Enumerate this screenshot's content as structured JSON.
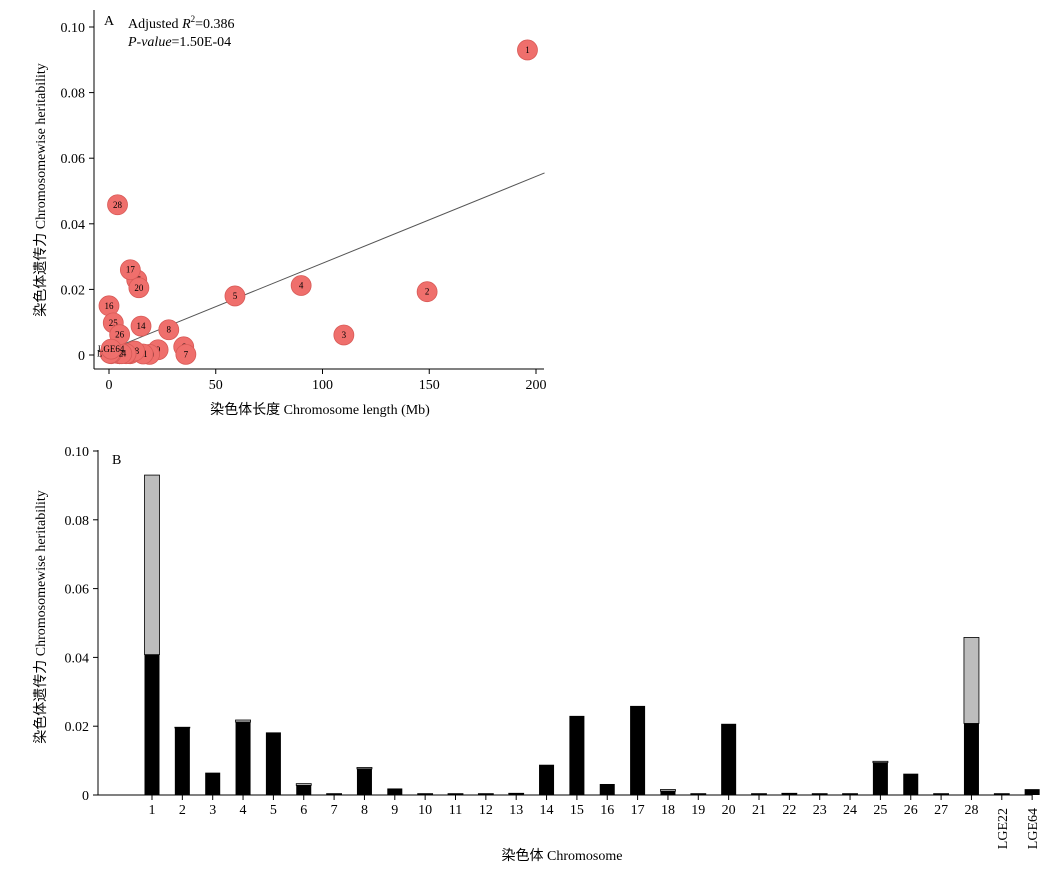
{
  "chart_data": [
    {
      "panel_label": "A",
      "type": "scatter",
      "xlabel": "染色体长度 Chromosome length (Mb)",
      "ylabel": "染色体遗传力 Chromosomewise heritability",
      "xlim": [
        -4,
        204
      ],
      "ylim": [
        -0.003,
        0.1
      ],
      "x_ticks": [
        0,
        50,
        100,
        150,
        200
      ],
      "x_tick_labels": [
        "0",
        "50",
        "100",
        "150",
        "200"
      ],
      "y_ticks": [
        0,
        0.02,
        0.04,
        0.06,
        0.08,
        0.1
      ],
      "y_tick_labels": [
        "0",
        "0.02",
        "0.04",
        "0.06",
        "0.08",
        "0.10"
      ],
      "annotation_line1_prefix": "Adjusted ",
      "annotation_line1_symbol": "R",
      "annotation_line1_sup": "2",
      "annotation_line1_suffix": "=0.386",
      "annotation_line2_italic": "P-value",
      "annotation_line2_suffix": "=1.50E-04",
      "regression": {
        "x1": 0,
        "y1": 0.0015,
        "x2": 204,
        "y2": 0.0555
      },
      "marker_color": "#ef6f6c",
      "grid": false,
      "points": [
        {
          "label": "1",
          "x": 196,
          "y": 0.093
        },
        {
          "label": "2",
          "x": 149,
          "y": 0.0193
        },
        {
          "label": "3",
          "x": 110,
          "y": 0.0061
        },
        {
          "label": "4",
          "x": 90,
          "y": 0.0212
        },
        {
          "label": "5",
          "x": 59,
          "y": 0.018
        },
        {
          "label": "6",
          "x": 35,
          "y": 0.0025
        },
        {
          "label": "7",
          "x": 36,
          "y": 0.0002
        },
        {
          "label": "8",
          "x": 28,
          "y": 0.0077
        },
        {
          "label": "9",
          "x": 23,
          "y": 0.0016
        },
        {
          "label": "10",
          "x": 19,
          "y": 0.0002
        },
        {
          "label": "11",
          "x": 16,
          "y": 0.0003
        },
        {
          "label": "12",
          "x": 10,
          "y": 0.0004
        },
        {
          "label": "13",
          "x": 9,
          "y": 0.0005
        },
        {
          "label": "14",
          "x": 15,
          "y": 0.0088
        },
        {
          "label": "15",
          "x": 13,
          "y": 0.0229
        },
        {
          "label": "16",
          "x": 0,
          "y": 0.015
        },
        {
          "label": "17",
          "x": 10,
          "y": 0.026
        },
        {
          "label": "18",
          "x": 12,
          "y": 0.0012
        },
        {
          "label": "19",
          "x": 8,
          "y": 0.0004
        },
        {
          "label": "20",
          "x": 14,
          "y": 0.0205
        },
        {
          "label": "21",
          "x": 5,
          "y": 0.0004
        },
        {
          "label": "22",
          "x": 4,
          "y": 0.0005
        },
        {
          "label": "23",
          "x": 5,
          "y": 0.0004
        },
        {
          "label": "24",
          "x": 6,
          "y": 0.0004
        },
        {
          "label": "25",
          "x": 2,
          "y": 0.0098
        },
        {
          "label": "26",
          "x": 5,
          "y": 0.0062
        },
        {
          "label": "27",
          "x": 1,
          "y": 0.0004
        },
        {
          "label": "28",
          "x": 4,
          "y": 0.0458
        },
        {
          "label": "LGE22",
          "x": 0.5,
          "y": 0.0005
        },
        {
          "label": "LGE64",
          "x": 1,
          "y": 0.0018
        }
      ]
    },
    {
      "panel_label": "B",
      "type": "bar",
      "stacked": true,
      "xlabel": "染色体 Chromosome",
      "ylabel": "染色体遗传力 Chromosomewise heritability",
      "ylim": [
        0,
        0.1
      ],
      "y_ticks": [
        0,
        0.02,
        0.04,
        0.06,
        0.08,
        0.1
      ],
      "y_tick_labels": [
        "0",
        "0.02",
        "0.04",
        "0.06",
        "0.08",
        "0.10"
      ],
      "grid": false,
      "categories": [
        "1",
        "2",
        "3",
        "4",
        "5",
        "6",
        "7",
        "8",
        "9",
        "10",
        "11",
        "12",
        "13",
        "14",
        "15",
        "16",
        "17",
        "18",
        "19",
        "20",
        "21",
        "22",
        "23",
        "24",
        "25",
        "26",
        "27",
        "28",
        "LGE22",
        "LGE64"
      ],
      "series": [
        {
          "color": "#000000",
          "values": [
            0.0408,
            0.0195,
            0.0065,
            0.0212,
            0.0182,
            0.0028,
            0.0002,
            0.0076,
            0.0019,
            0.0002,
            0.0002,
            0.0002,
            0.0003,
            0.0088,
            0.023,
            0.0032,
            0.0259,
            0.0011,
            0.0002,
            0.0207,
            0.0002,
            0.0003,
            0.0002,
            0.0002,
            0.0094,
            0.0062,
            0.0002,
            0.0208,
            0.0002,
            0.0017
          ]
        },
        {
          "color": "#bdbdbd",
          "values": [
            0.0522,
            0.0002,
            0.0,
            0.0006,
            0.0,
            0.0005,
            0.0002,
            0.0004,
            0.0,
            0.0002,
            0.0002,
            0.0002,
            0.0002,
            0.0,
            0.0,
            0.0,
            0.0,
            0.0005,
            0.0002,
            0.0,
            0.0002,
            0.0002,
            0.0002,
            0.0002,
            0.0004,
            0.0,
            0.0002,
            0.025,
            0.0002,
            0.0
          ]
        }
      ]
    }
  ]
}
